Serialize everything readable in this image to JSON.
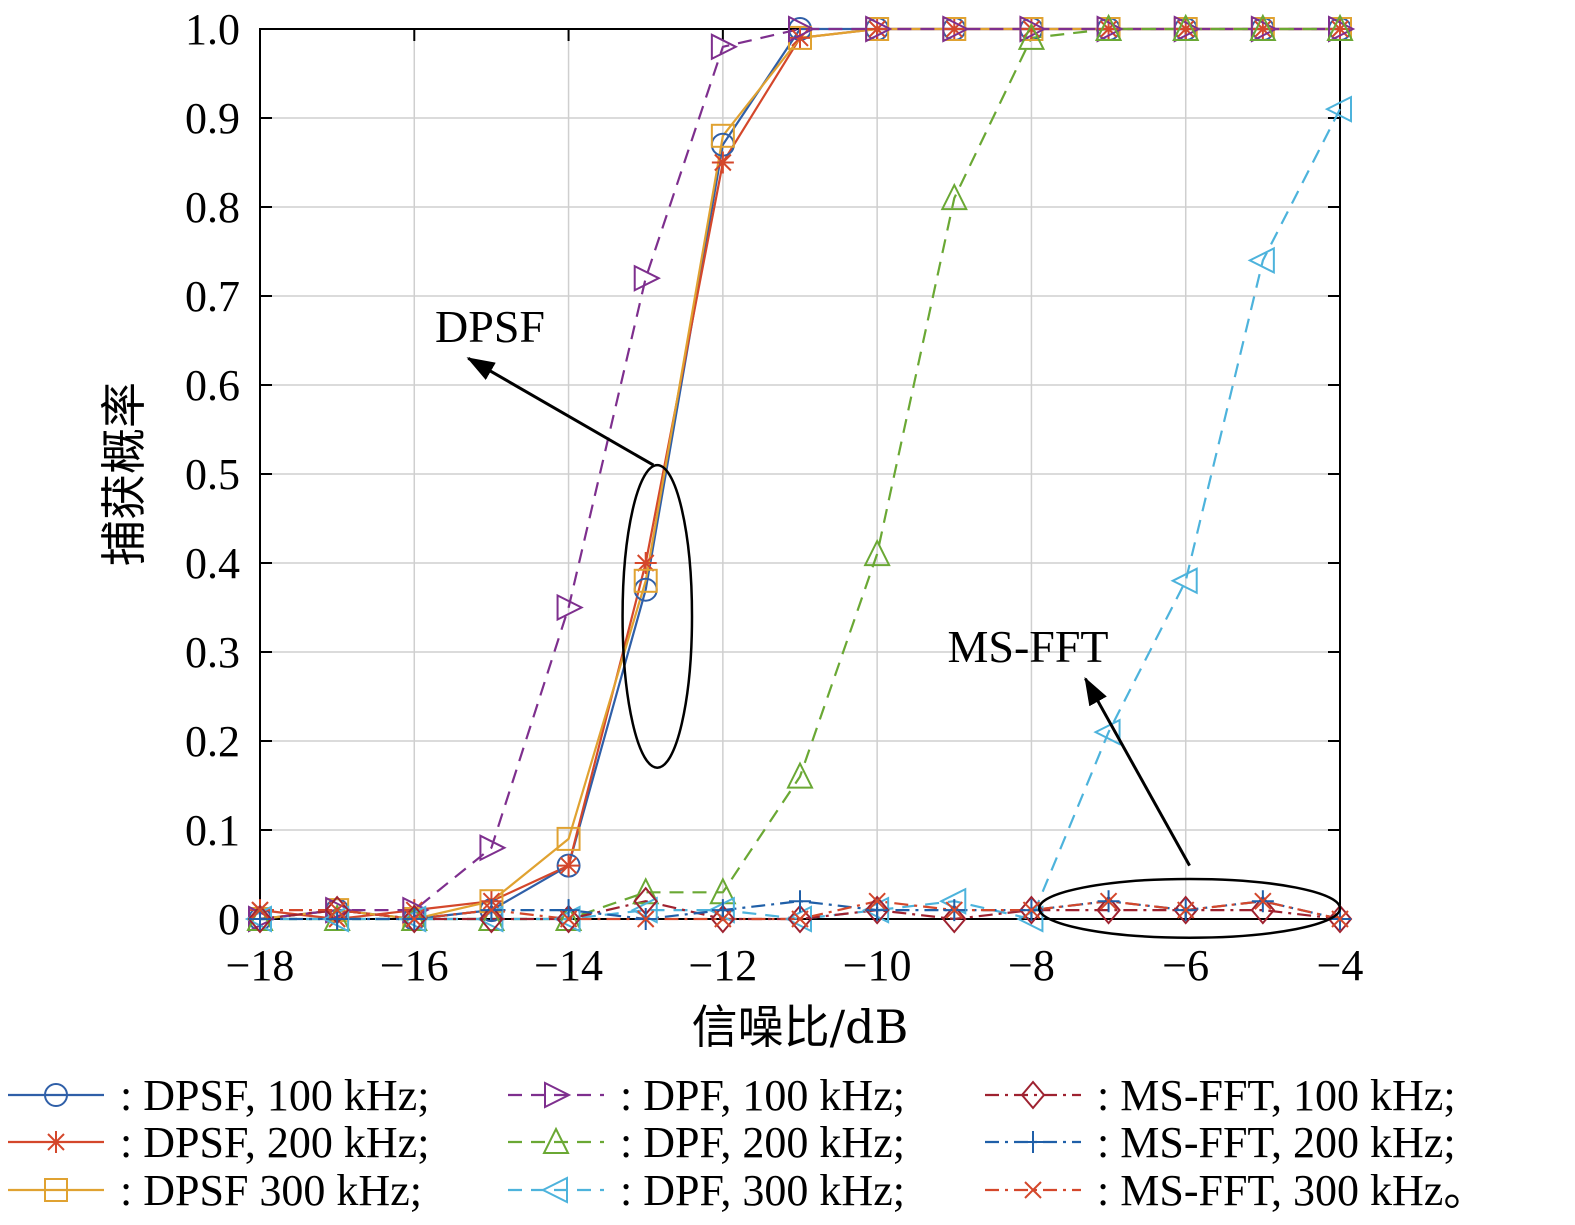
{
  "chart_data": {
    "type": "line",
    "xlabel": "信噪比/dB",
    "ylabel": "捕获概率",
    "xlim": [
      -18,
      -4
    ],
    "ylim": [
      0,
      1.0
    ],
    "xticks": [
      -18,
      -16,
      -14,
      -12,
      -10,
      -8,
      -6,
      -4
    ],
    "xtick_labels": [
      "−18",
      "−16",
      "−14",
      "−12",
      "−10",
      "−8",
      "−6",
      "−4"
    ],
    "yticks": [
      0,
      0.1,
      0.2,
      0.3,
      0.4,
      0.5,
      0.6,
      0.7,
      0.8,
      0.9,
      1.0
    ],
    "ytick_labels": [
      "0",
      "0.1",
      "0.2",
      "0.3",
      "0.4",
      "0.5",
      "0.6",
      "0.7",
      "0.8",
      "0.9",
      "1.0"
    ],
    "x": [
      -18,
      -17,
      -16,
      -15,
      -14,
      -13,
      -12,
      -11,
      -10,
      -9,
      -8,
      -7,
      -6,
      -5,
      -4
    ],
    "grid": true,
    "legend_position": "below",
    "series": [
      {
        "name": "DPSF, 100 kHz",
        "legend_label": ": DPSF, 100 kHz;",
        "color": "#2f5fa8",
        "dash": "solid",
        "marker": "circle",
        "values": [
          0.0,
          0.01,
          0.0,
          0.01,
          0.06,
          0.37,
          0.87,
          1.0,
          1.0,
          1.0,
          1.0,
          1.0,
          1.0,
          1.0,
          1.0
        ]
      },
      {
        "name": "DPSF, 200 kHz",
        "legend_label": ": DPSF, 200 kHz;",
        "color": "#d4472b",
        "dash": "solid",
        "marker": "asterisk",
        "values": [
          0.01,
          0.0,
          0.01,
          0.02,
          0.06,
          0.4,
          0.85,
          0.99,
          1.0,
          1.0,
          1.0,
          1.0,
          1.0,
          1.0,
          1.0
        ]
      },
      {
        "name": "DPSF 300 kHz",
        "legend_label": ": DPSF 300 kHz;",
        "color": "#e0a231",
        "dash": "solid",
        "marker": "square",
        "values": [
          0.0,
          0.01,
          0.0,
          0.02,
          0.09,
          0.38,
          0.88,
          0.99,
          1.0,
          1.0,
          1.0,
          1.0,
          1.0,
          1.0,
          1.0
        ]
      },
      {
        "name": "DPF, 100 kHz",
        "legend_label": ": DPF, 100 kHz;",
        "color": "#7e2f8e",
        "dash": "dashed",
        "marker": "triangle-right",
        "values": [
          0.0,
          0.01,
          0.01,
          0.08,
          0.35,
          0.72,
          0.98,
          1.0,
          1.0,
          1.0,
          1.0,
          1.0,
          1.0,
          1.0,
          1.0
        ]
      },
      {
        "name": "DPF, 200 kHz",
        "legend_label": ": DPF, 200 kHz;",
        "color": "#6aa834",
        "dash": "dashed",
        "marker": "triangle-up",
        "values": [
          0.0,
          0.0,
          0.0,
          0.0,
          0.0,
          0.03,
          0.03,
          0.16,
          0.41,
          0.81,
          0.99,
          1.0,
          1.0,
          1.0,
          1.0
        ]
      },
      {
        "name": "DPF, 300 kHz",
        "legend_label": ": DPF, 300 kHz;",
        "color": "#4db3dc",
        "dash": "dashed",
        "marker": "triangle-left",
        "values": [
          0.0,
          0.0,
          0.0,
          0.0,
          0.0,
          0.01,
          0.01,
          0.0,
          0.01,
          0.02,
          0.0,
          0.21,
          0.38,
          0.74,
          0.91
        ]
      },
      {
        "name": "MS-FFT, 100 kHz",
        "legend_label": ": MS-FFT, 100 kHz;",
        "color": "#9e2230",
        "dash": "dashdot",
        "marker": "diamond",
        "values": [
          0.0,
          0.01,
          0.0,
          0.0,
          0.0,
          0.02,
          0.0,
          0.0,
          0.01,
          0.0,
          0.01,
          0.01,
          0.01,
          0.01,
          0.0
        ]
      },
      {
        "name": "MS-FFT, 200 kHz",
        "legend_label": ": MS-FFT, 200 kHz;",
        "color": "#1f5fa8",
        "dash": "dashdot",
        "marker": "plus",
        "values": [
          0.0,
          0.0,
          0.0,
          0.01,
          0.01,
          0.0,
          0.01,
          0.02,
          0.01,
          0.01,
          0.01,
          0.02,
          0.01,
          0.02,
          0.0
        ]
      },
      {
        "name": "MS-FFT, 300 kHz",
        "legend_label": ": MS-FFT, 300 kHz。",
        "color": "#d4472b",
        "dash": "dashdot",
        "marker": "x",
        "values": [
          0.01,
          0.01,
          0.0,
          0.01,
          0.0,
          0.0,
          0.0,
          0.0,
          0.02,
          0.01,
          0.01,
          0.02,
          0.01,
          0.02,
          0.0
        ]
      }
    ],
    "annotations": [
      {
        "text": "DPSF",
        "arrow_from": [
          -12.9,
          0.51
        ],
        "arrow_to": [
          -15.3,
          0.63
        ],
        "ellipse_center": [
          -12.85,
          0.34
        ],
        "ellipse_radii": [
          0.45,
          0.17
        ]
      },
      {
        "text": "MS-FFT",
        "arrow_from": [
          -5.95,
          0.06
        ],
        "arrow_to": [
          -7.3,
          0.27
        ],
        "ellipse_center": [
          -5.95,
          0.012
        ],
        "ellipse_radii": [
          1.95,
          0.033
        ]
      }
    ]
  }
}
